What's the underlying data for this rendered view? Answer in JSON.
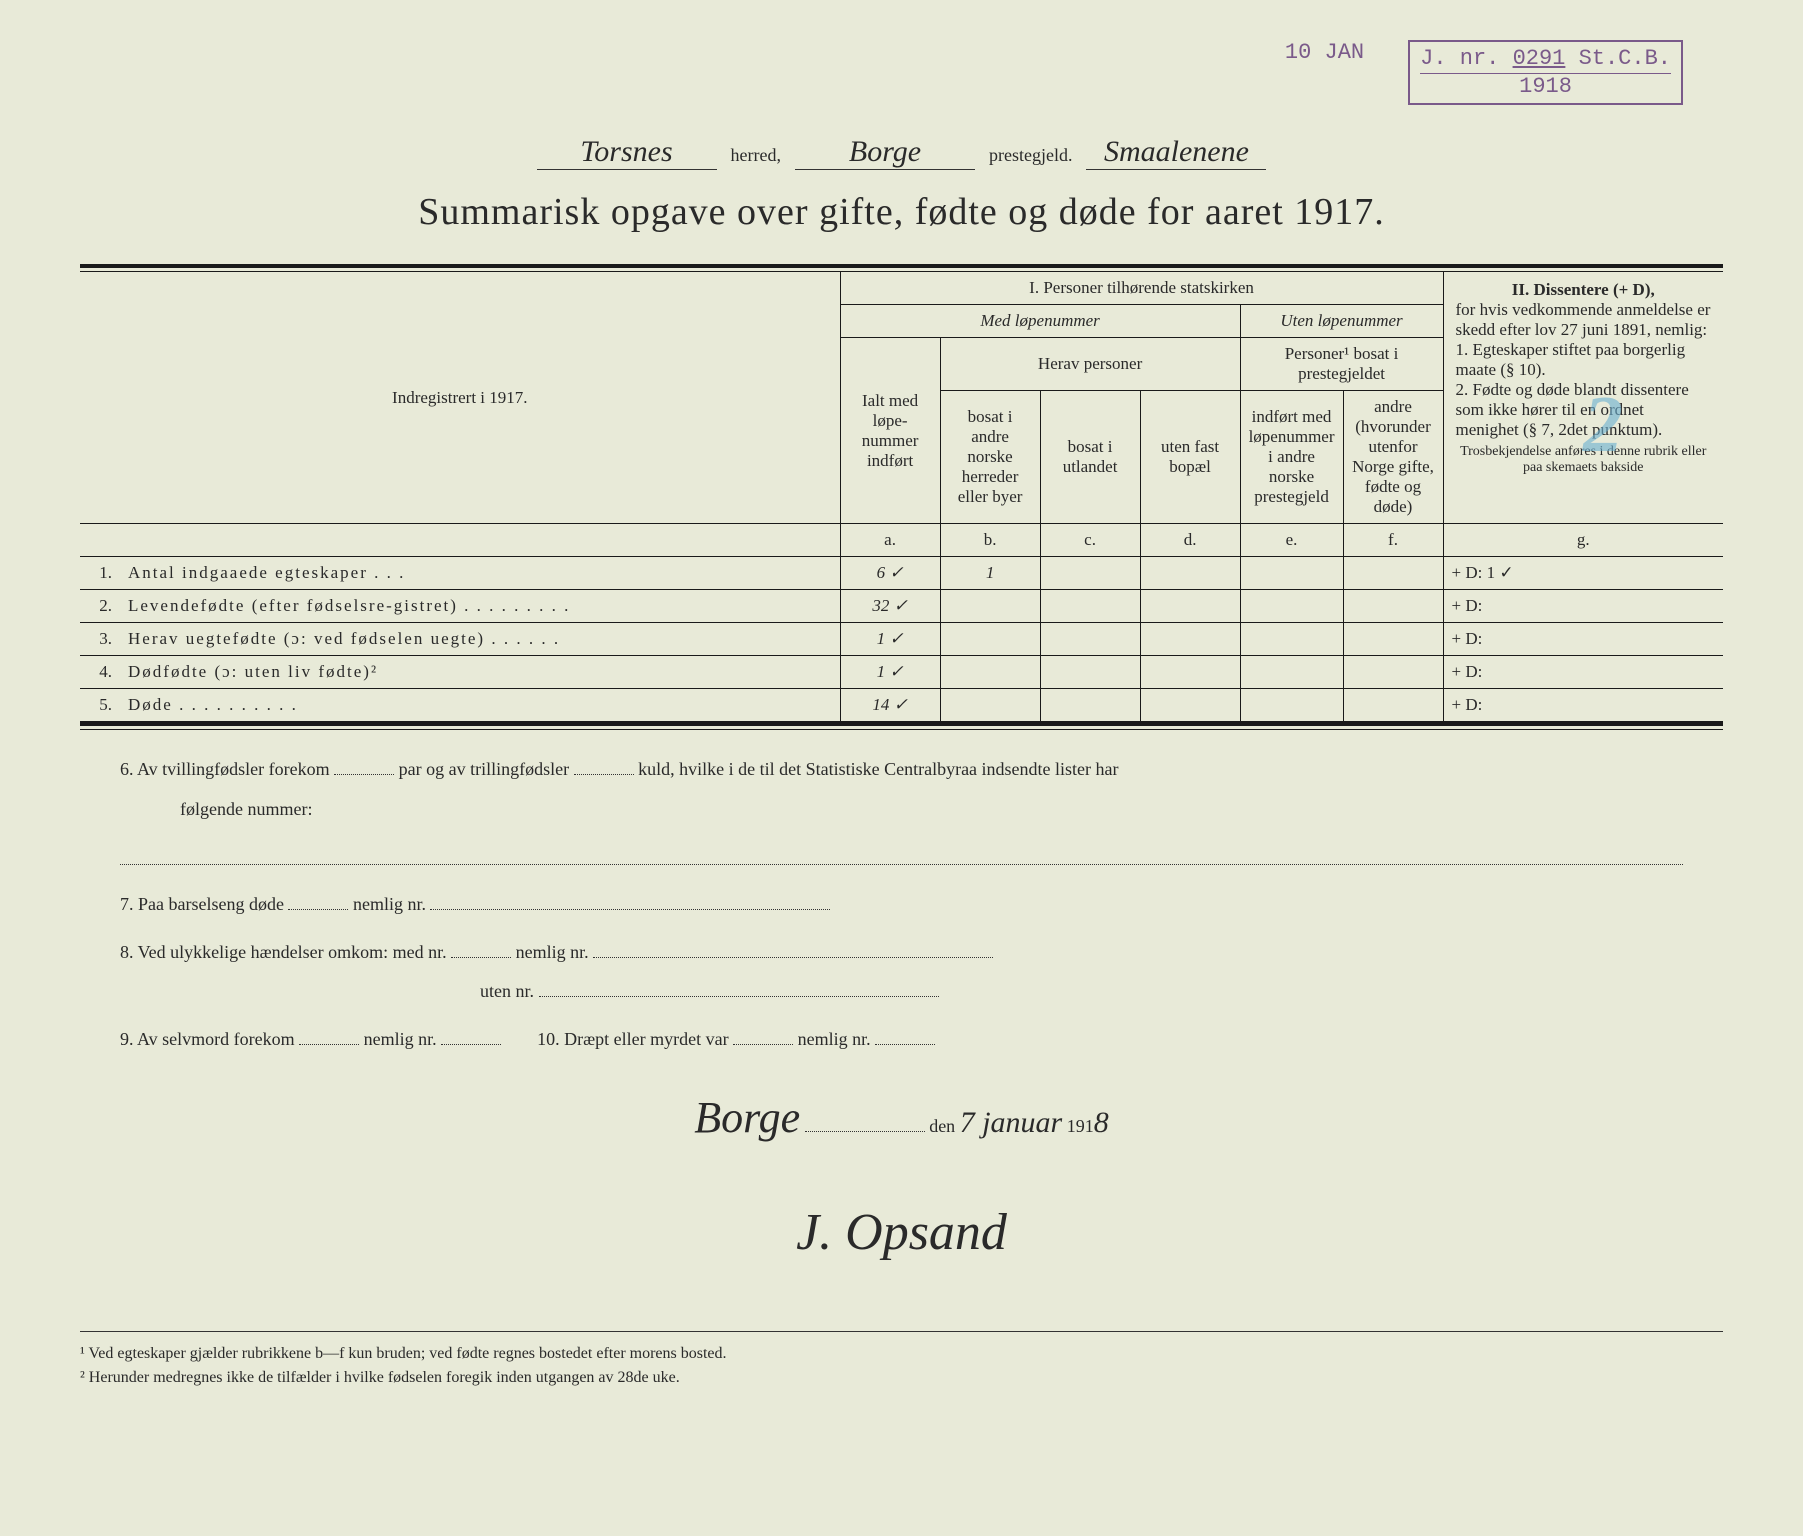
{
  "stamps": {
    "date_stamp": "10 JAN",
    "jnr_label": "J. nr.",
    "jnr_value": "0291",
    "jnr_suffix": "St.C.B.",
    "jnr_year": "1918"
  },
  "pencil_mark": "2",
  "header": {
    "herred_value": "Torsnes",
    "herred_label": "herred,",
    "prestegjeld_value": "Borge",
    "prestegjeld_label": "prestegjeld.",
    "region_value": "Smaalenene"
  },
  "title": "Summarisk opgave over gifte, fødte og døde for aaret 1917.",
  "table": {
    "col_indreg": "Indregistrert i 1917.",
    "sec1_title": "I.  Personer tilhørende statskirken",
    "sec1_med": "Med løpenummer",
    "sec1_uten": "Uten løpenummer",
    "sec2_title": "II.  Dissentere (+ D),",
    "sec2_body": "for hvis vedkommende anmeldelse er skedd efter lov 27 juni 1891, nemlig:",
    "sec2_item1": "1. Egteskaper stiftet paa borgerlig maate (§ 10).",
    "sec2_item2": "2. Fødte og døde blandt dissentere som ikke hører til en ordnet menighet (§ 7, 2det punktum).",
    "sec2_note": "Trosbekjendelse anføres i denne rubrik eller paa skemaets bakside",
    "col_a": "Ialt med løpe-nummer indført",
    "col_herav": "Herav personer",
    "col_b": "bosat i andre norske herreder eller byer",
    "col_c": "bosat i utlandet",
    "col_d": "uten fast bopæl",
    "col_uten_head": "Personer¹ bosat i prestegjeldet",
    "col_e": "indført med løpenummer i andre norske prestegjeld",
    "col_f": "andre (hvorunder utenfor Norge gifte, fødte og døde)",
    "letters": {
      "a": "a.",
      "b": "b.",
      "c": "c.",
      "d": "d.",
      "e": "e.",
      "f": "f.",
      "g": "g."
    },
    "rows": [
      {
        "num": "1.",
        "label": "Antal indgaaede egteskaper . . .",
        "a": "6 ✓",
        "b": "1",
        "g": "+ D:   1 ✓"
      },
      {
        "num": "2.",
        "label": "Levendefødte (efter fødselsre-gistret) . . . . . . . . .",
        "a": "32 ✓",
        "b": "",
        "g": "+ D:"
      },
      {
        "num": "3.",
        "label": "Herav uegtefødte (ɔ: ved fødselen uegte) . . . . . .",
        "a": "1 ✓",
        "b": "",
        "g": "+ D:"
      },
      {
        "num": "4.",
        "label": "Dødfødte (ɔ: uten liv fødte)²",
        "a": "1 ✓",
        "b": "",
        "g": "+ D:"
      },
      {
        "num": "5.",
        "label": "Døde . . . . . . . . . .",
        "a": "14 ✓",
        "b": "",
        "g": "+ D:"
      }
    ]
  },
  "questions": {
    "q6a": "6.  Av tvillingfødsler forekom",
    "q6b": "par og av trillingfødsler",
    "q6c": "kuld, hvilke i de til det Statistiske Centralbyraa indsendte lister har",
    "q6d": "følgende nummer:",
    "q7": "7.  Paa barselseng døde",
    "q7b": "nemlig nr.",
    "q8": "8.  Ved ulykkelige hændelser omkom:  med nr.",
    "q8b": "nemlig nr.",
    "q8c": "uten nr.",
    "q9": "9.  Av selvmord forekom",
    "q9b": "nemlig nr.",
    "q10": "10.  Dræpt eller myrdet var",
    "q10b": "nemlig nr."
  },
  "signature": {
    "place": "Borge",
    "den": "den",
    "date": "7 januar",
    "year_prefix": "191",
    "year_last": "8",
    "name": "J. Opsand"
  },
  "footnotes": {
    "f1": "¹ Ved egteskaper gjælder rubrikkene b—f kun bruden; ved fødte regnes bostedet efter morens bosted.",
    "f2": "² Herunder medregnes ikke de tilfælder i hvilke fødselen foregik inden utgangen av 28de uke."
  }
}
